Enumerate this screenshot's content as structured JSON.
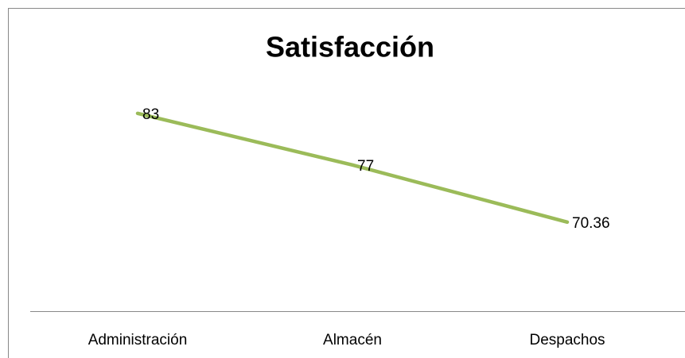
{
  "chart_data": {
    "type": "line",
    "title": "Satisfacción",
    "categories": [
      "Administración",
      "Almacén",
      "Despachos"
    ],
    "series": [
      {
        "name": "Satisfacción",
        "color": "#9bbb59",
        "values": [
          83,
          77,
          70.36
        ]
      }
    ],
    "ylim": [
      60,
      90
    ]
  }
}
